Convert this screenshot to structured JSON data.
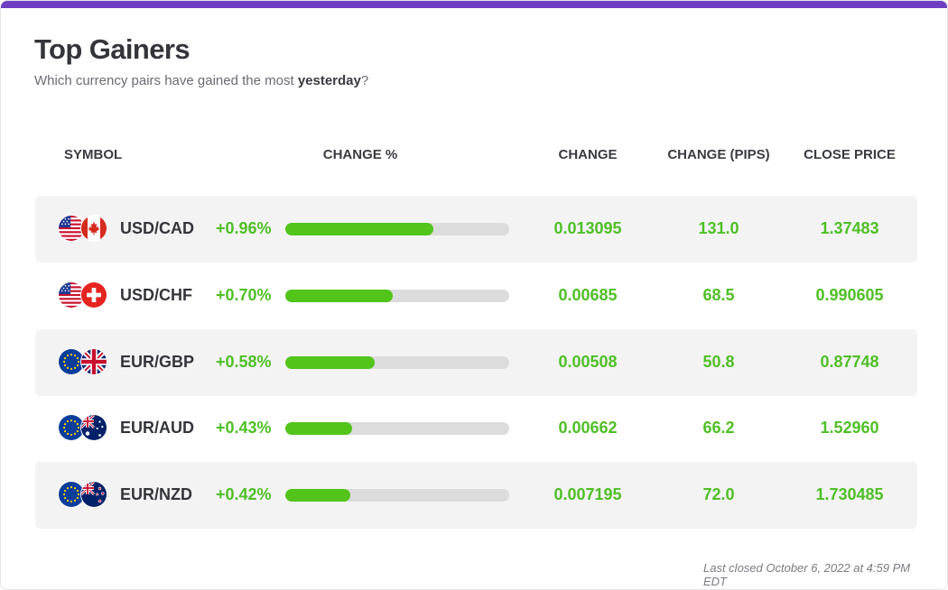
{
  "title": "Top Gainers",
  "subtitle": {
    "before": "Which currency pairs have gained the most ",
    "highlight": "yesterday",
    "after": "?"
  },
  "columns": {
    "symbol": "SYMBOL",
    "change_pct": "CHANGE %",
    "change": "CHANGE",
    "change_pips": "CHANGE (PIPS)",
    "close_price": "CLOSE PRICE"
  },
  "rows": [
    {
      "symbol": "USD/CAD",
      "flags": [
        "us-flag-icon",
        "canada-flag-icon"
      ],
      "change_pct": "+0.96%",
      "bar_fraction": 0.66,
      "change": "0.013095",
      "change_pips": "131.0",
      "close_price": "1.37483"
    },
    {
      "symbol": "USD/CHF",
      "flags": [
        "us-flag-icon",
        "switzerland-flag-icon"
      ],
      "change_pct": "+0.70%",
      "bar_fraction": 0.48,
      "change": "0.00685",
      "change_pips": "68.5",
      "close_price": "0.990605"
    },
    {
      "symbol": "EUR/GBP",
      "flags": [
        "eu-flag-icon",
        "uk-flag-icon"
      ],
      "change_pct": "+0.58%",
      "bar_fraction": 0.4,
      "change": "0.00508",
      "change_pips": "50.8",
      "close_price": "0.87748"
    },
    {
      "symbol": "EUR/AUD",
      "flags": [
        "eu-flag-icon",
        "australia-flag-icon"
      ],
      "change_pct": "+0.43%",
      "bar_fraction": 0.3,
      "change": "0.00662",
      "change_pips": "66.2",
      "close_price": "1.52960"
    },
    {
      "symbol": "EUR/NZD",
      "flags": [
        "eu-flag-icon",
        "new-zealand-flag-icon"
      ],
      "change_pct": "+0.42%",
      "bar_fraction": 0.29,
      "change": "0.007195",
      "change_pips": "72.0",
      "close_price": "1.730485"
    }
  ],
  "footer": "Last closed October 6, 2022 at 4:59 PM EDT",
  "colors": {
    "accent_bar": "#6e3fc2",
    "positive": "#4fbf26",
    "bar_fill": "#52c41a",
    "bar_track": "#dcdcdc",
    "row_shade": "#f3f3f4"
  }
}
